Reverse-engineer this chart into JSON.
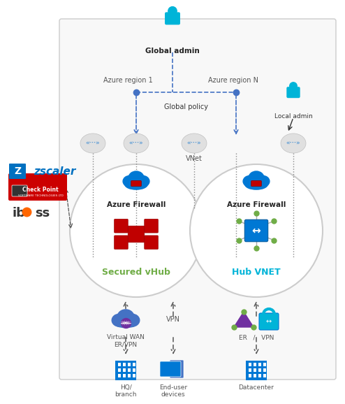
{
  "bg_color": "#ffffff",
  "panel_facecolor": "#f8f8f8",
  "panel_edgecolor": "#cccccc",
  "azure_blue": "#0078d4",
  "cyan": "#00b4d8",
  "green_dot": "#70ad47",
  "gray_router": "#d0d0d0",
  "router_text_color": "#5a9bd5",
  "hub1_label": "Secured vHub",
  "hub2_label": "Hub VNET",
  "hub1_label_color": "#70ad47",
  "hub2_label_color": "#00b4d8",
  "region1_label": "Azure region 1",
  "region2_label": "Azure region N",
  "global_admin_label": "Global admin",
  "global_policy_label": "Global policy",
  "local_admin_label": "Local admin",
  "vnet_label": "VNet",
  "azure_firewall_label": "Azure Firewall",
  "bottom_labels": [
    "Virtual WAN\nER/VPN",
    "VPN",
    "ER   /   VPN"
  ],
  "bottom_dest_labels": [
    "HQ/\nbranch",
    "End-user\ndevices",
    "Datacenter"
  ],
  "zscaler_color": "#0070c0",
  "iboss_color": "#333333",
  "arrow_color": "#555555",
  "dashed_blue": "#4472c4"
}
